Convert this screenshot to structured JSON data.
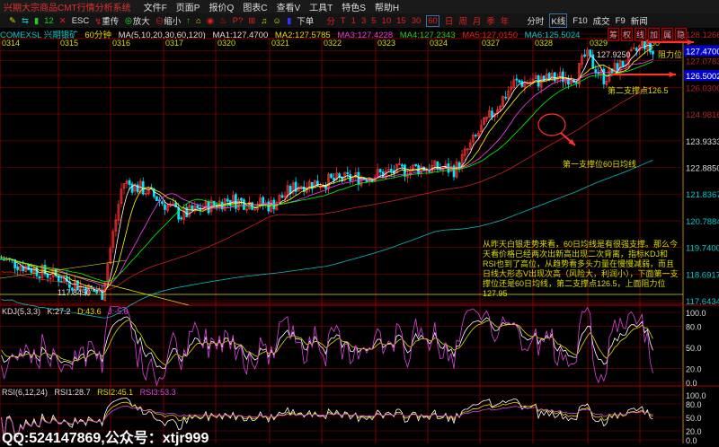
{
  "menu": {
    "app_title": "兴期大宗商品CMT行情分析系统",
    "items": [
      "文件F",
      "页面P",
      "报价Q",
      "图表C",
      "查看V",
      "工具T",
      "特色S",
      "帮助H"
    ]
  },
  "toolbar": {
    "items": [
      "12",
      "ESC",
      "重传",
      "放大",
      "缩小",
      "下单"
    ],
    "periods": [
      "分",
      "T",
      "1",
      "3",
      "5",
      "10",
      "15",
      "30",
      "60",
      "日",
      "周",
      "月",
      "季",
      "年"
    ],
    "views": [
      "分时",
      "K线",
      "F10",
      "成交",
      "F9",
      "新闻"
    ],
    "active_period": "60",
    "active_view": "K线"
  },
  "info": {
    "symbol": "COMEXSL 兴期银矿",
    "period": "60分钟",
    "ma_params": "MA(5,10,20,30,60,120)",
    "ma1": "MA1:127.4700",
    "ma2": "MA2:127.5785",
    "ma3": "MA3:127.4228",
    "ma4": "MA4:127.2343",
    "ma5": "MA5:127.0150",
    "ma6": "MA6:125.5024"
  },
  "tags": [
    "筹",
    "权",
    "线",
    "加",
    "属",
    "隐"
  ],
  "dates": [
    "0314",
    "0315",
    "0316",
    "0317",
    "0320",
    "0321",
    "0322",
    "0323",
    "0324",
    "0327",
    "0328",
    "0329",
    "0330"
  ],
  "price_axis": [
    "128.1266",
    "127.4700",
    "127.0783",
    "126.5002",
    "126.0300",
    "124.9816",
    "123.9333",
    "122.8850",
    "121.8367",
    "120.7884",
    "119.7400",
    "118.6917",
    "117.6434"
  ],
  "price_marks": {
    "high_label": "127.9250",
    "low_label": "117.8450"
  },
  "annotations": {
    "resistance": "阻力位",
    "support2": "第二支撑点126.5",
    "support1": "第一支撑位60日均线",
    "commentary": "从昨天白银走势来看，60日均线是有很强支撑。那么今天看价格已经两次出新高出现二次背离，指标KDJ和RSI也到了高位，从趋势看多头力量在慢慢减弱，而且日线大形态V出现次高（风险大，利润小），下面第一支撑位还是60日均线，第二支撑点126.5，上面阻力位127.95"
  },
  "kdj": {
    "params": "KDJ(5,3,3)",
    "k": "K:27.2",
    "d": "D:43.6",
    "j": "J:-5.6",
    "axis": [
      "100.0",
      "80.0",
      "50.0",
      "20.0",
      "0.0"
    ]
  },
  "rsi": {
    "params": "RSI(6,12,24)",
    "rsi1": "RSI1:28.7",
    "rsi2": "RSI2:45.1",
    "rsi3": "RSI3:53.3",
    "axis": [
      "100.0",
      "80.0",
      "50.0",
      "20.0",
      "0.0"
    ]
  },
  "watermark": "QQ:524147869,公众号：xtjr999",
  "colors": {
    "up": "#ff3232",
    "down": "#00e5ff",
    "ma1": "#ffffff",
    "ma2": "#ffff00",
    "ma3": "#ff40ff",
    "ma4": "#00ff00",
    "ma5": "#d02020",
    "ma6": "#00c0c0",
    "grid": "#800000"
  }
}
